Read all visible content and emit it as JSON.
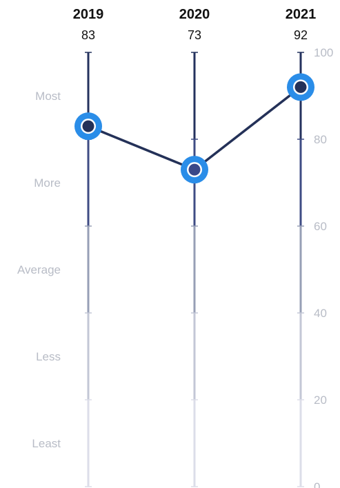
{
  "chart_data": {
    "type": "line",
    "title": "",
    "categories": [
      "2019",
      "2020",
      "2021"
    ],
    "values": [
      83,
      73,
      92
    ],
    "value_labels": [
      "83",
      "73",
      "92"
    ],
    "ylim": [
      0,
      100
    ],
    "y_ticks": [
      {
        "value": 0,
        "label": "0"
      },
      {
        "value": 20,
        "label": "20"
      },
      {
        "value": 40,
        "label": "40"
      },
      {
        "value": 60,
        "label": "60"
      },
      {
        "value": 80,
        "label": "80"
      },
      {
        "value": 100,
        "label": "100"
      }
    ],
    "bands": [
      {
        "label": "Least",
        "from": 0,
        "to": 20,
        "color": "#dcdee9"
      },
      {
        "label": "Less",
        "from": 20,
        "to": 40,
        "color": "#c3c7d6"
      },
      {
        "label": "Average",
        "from": 40,
        "to": 60,
        "color": "#979fb6"
      },
      {
        "label": "More",
        "from": 60,
        "to": 80,
        "color": "#3f4c84"
      },
      {
        "label": "Most",
        "from": 80,
        "to": 100,
        "color": "#24325e"
      }
    ],
    "colors": {
      "line": "#243158",
      "marker_ring": "#2a8de8",
      "marker_ring_border": "#ffffff",
      "marker_fill_default": "#243158",
      "marker_fill_mid": "#3a4888",
      "year_text": "#111111",
      "muted_text": "#b8bcc6"
    },
    "grid": false,
    "legend": "none"
  }
}
